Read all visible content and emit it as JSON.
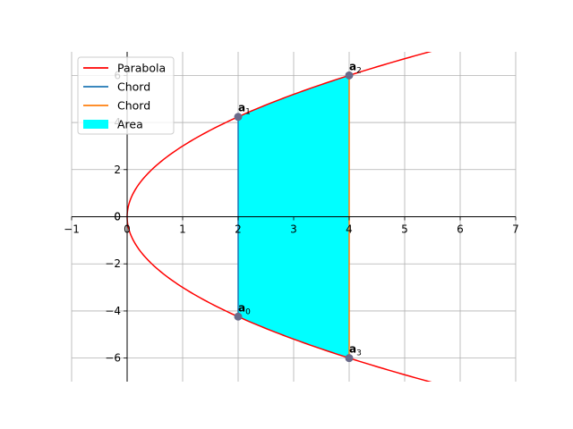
{
  "chart_data": {
    "type": "line",
    "title": "",
    "xlabel": "",
    "ylabel": "",
    "xlim": [
      -1,
      7
    ],
    "ylim": [
      -7,
      7
    ],
    "xticks": [
      -1,
      0,
      1,
      2,
      3,
      4,
      5,
      6,
      7
    ],
    "yticks": [
      -6,
      -4,
      -2,
      0,
      2,
      4,
      6
    ],
    "grid": true,
    "legend_position": "top-left",
    "parabola": {
      "equation": "y^2 = 9x",
      "color": "#ff0000"
    },
    "points": [
      {
        "label": "a",
        "index": "0",
        "x": 2,
        "y": -4.24
      },
      {
        "label": "a",
        "index": "1",
        "x": 2,
        "y": 4.24
      },
      {
        "label": "a",
        "index": "2",
        "x": 4,
        "y": 6
      },
      {
        "label": "a",
        "index": "3",
        "x": 4,
        "y": -6
      }
    ],
    "series": [
      {
        "name": "Parabola",
        "type": "curve",
        "color": "#ff0000"
      },
      {
        "name": "Chord",
        "type": "segment",
        "from": [
          2,
          -4.24
        ],
        "to": [
          2,
          4.24
        ],
        "color": "#1f77b4"
      },
      {
        "name": "Chord",
        "type": "segment",
        "from": [
          4,
          -6
        ],
        "to": [
          4,
          6
        ],
        "color": "#ff7f0e"
      },
      {
        "name": "Area",
        "type": "fill",
        "x_range": [
          2,
          4
        ],
        "color": "#00ffff"
      }
    ]
  }
}
